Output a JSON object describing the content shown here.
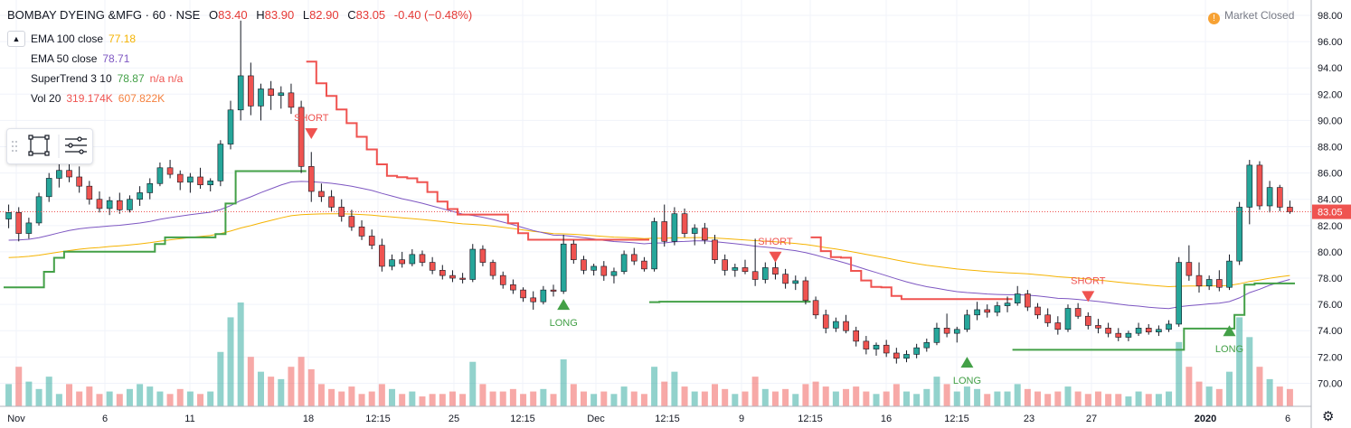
{
  "header": {
    "symbol": "BOMBAY DYEING &MFG · 60 · NSE",
    "open_label": "O",
    "open": "83.40",
    "high_label": "H",
    "high": "83.90",
    "low_label": "L",
    "low": "82.90",
    "close_label": "C",
    "close": "83.05",
    "change": "-0.40 (−0.48%)"
  },
  "market_status": "Market Closed",
  "market_icon": "!",
  "legend": [
    {
      "name": "EMA 100 close",
      "value": "77.18",
      "color": "#f5b301"
    },
    {
      "name": "EMA 50 close",
      "value": "78.71",
      "color": "#7e57c2"
    },
    {
      "name": "SuperTrend 3 10",
      "value": "78.87",
      "extra": "n/a n/a",
      "color": "#43a047",
      "extra_color": "#ef5350"
    },
    {
      "name": "Vol 20",
      "value": "319.174K",
      "value2": "607.822K",
      "color": "#ef5350",
      "color2": "#f5813f"
    }
  ],
  "colors": {
    "up": "#26a69a",
    "down": "#ef5350",
    "ema100": "#f5b301",
    "ema50": "#7e57c2",
    "st_up": "#43a047",
    "st_down": "#ef5350",
    "last_price_bg": "#ef5350",
    "grid": "#f0f3fa"
  },
  "chart_data": {
    "type": "candlestick",
    "title": "BOMBAY DYEING &MFG · 60 · NSE",
    "x_tick_labels": [
      "Nov",
      "6",
      "11",
      "18",
      "12:15",
      "25",
      "12:15",
      "Dec",
      "12:15",
      "9",
      "12:15",
      "16",
      "12:15",
      "23",
      "27",
      "2020",
      "6"
    ],
    "y_ticks": [
      "70.00",
      "72.00",
      "74.00",
      "76.00",
      "78.00",
      "80.00",
      "82.00",
      "84.00",
      "86.00",
      "88.00",
      "90.00",
      "92.00",
      "94.00",
      "96.00",
      "98.00"
    ],
    "ylim": [
      69,
      98.5
    ],
    "last_price": "83.05",
    "ohlc": [
      [
        82.5,
        83.6,
        81.8,
        83.0
      ],
      [
        83.0,
        83.4,
        80.8,
        81.4
      ],
      [
        81.4,
        82.6,
        81.0,
        82.2
      ],
      [
        82.2,
        84.5,
        82.0,
        84.2
      ],
      [
        84.2,
        86.0,
        83.8,
        85.6
      ],
      [
        85.6,
        86.8,
        84.9,
        86.2
      ],
      [
        86.2,
        86.9,
        85.3,
        85.7
      ],
      [
        85.7,
        86.5,
        84.5,
        85.0
      ],
      [
        85.0,
        85.4,
        83.6,
        84.0
      ],
      [
        84.0,
        84.6,
        83.0,
        83.3
      ],
      [
        83.3,
        84.2,
        82.8,
        83.9
      ],
      [
        83.9,
        84.5,
        82.9,
        83.2
      ],
      [
        83.2,
        84.3,
        83.0,
        84.0
      ],
      [
        84.0,
        85.0,
        83.5,
        84.5
      ],
      [
        84.5,
        85.6,
        84.0,
        85.2
      ],
      [
        85.2,
        86.8,
        85.0,
        86.4
      ],
      [
        86.4,
        87.0,
        85.6,
        85.9
      ],
      [
        85.9,
        86.2,
        84.7,
        85.3
      ],
      [
        85.3,
        86.0,
        84.5,
        85.7
      ],
      [
        85.7,
        86.4,
        84.8,
        85.1
      ],
      [
        85.1,
        85.6,
        84.6,
        85.4
      ],
      [
        85.4,
        88.5,
        85.0,
        88.2
      ],
      [
        88.2,
        91.5,
        87.8,
        90.8
      ],
      [
        90.8,
        97.6,
        90.0,
        93.4
      ],
      [
        93.4,
        94.4,
        90.4,
        91.1
      ],
      [
        91.1,
        92.8,
        90.0,
        92.4
      ],
      [
        92.4,
        93.0,
        90.8,
        91.9
      ],
      [
        91.9,
        92.6,
        90.9,
        92.1
      ],
      [
        92.1,
        92.8,
        90.5,
        91.0
      ],
      [
        91.0,
        91.5,
        86.0,
        86.5
      ],
      [
        86.5,
        87.6,
        83.8,
        84.6
      ],
      [
        84.6,
        85.2,
        83.8,
        84.2
      ],
      [
        84.2,
        84.7,
        83.1,
        83.4
      ],
      [
        83.4,
        84.0,
        82.3,
        82.7
      ],
      [
        82.7,
        83.2,
        81.6,
        81.9
      ],
      [
        81.9,
        82.4,
        80.9,
        81.2
      ],
      [
        81.2,
        81.7,
        80.2,
        80.5
      ],
      [
        80.5,
        81.0,
        78.5,
        78.9
      ],
      [
        78.9,
        79.8,
        78.6,
        79.4
      ],
      [
        79.4,
        80.0,
        78.8,
        79.1
      ],
      [
        79.1,
        80.2,
        78.9,
        79.8
      ],
      [
        79.8,
        80.1,
        78.9,
        79.2
      ],
      [
        79.2,
        79.6,
        78.3,
        78.6
      ],
      [
        78.6,
        79.0,
        77.9,
        78.2
      ],
      [
        78.2,
        78.6,
        77.7,
        78.0
      ],
      [
        78.0,
        78.4,
        77.6,
        77.9
      ],
      [
        77.9,
        80.6,
        77.7,
        80.2
      ],
      [
        80.2,
        80.5,
        78.9,
        79.2
      ],
      [
        79.2,
        79.4,
        77.9,
        78.2
      ],
      [
        78.2,
        78.5,
        77.2,
        77.5
      ],
      [
        77.5,
        77.9,
        76.8,
        77.1
      ],
      [
        77.1,
        77.3,
        76.2,
        76.5
      ],
      [
        76.5,
        77.0,
        75.6,
        76.2
      ],
      [
        76.2,
        77.4,
        76.0,
        77.1
      ],
      [
        77.1,
        77.5,
        76.6,
        77.0
      ],
      [
        77.0,
        81.3,
        76.8,
        80.6
      ],
      [
        80.6,
        80.9,
        79.1,
        79.4
      ],
      [
        79.4,
        79.7,
        78.3,
        78.6
      ],
      [
        78.6,
        79.1,
        78.2,
        78.9
      ],
      [
        78.9,
        79.3,
        77.8,
        78.2
      ],
      [
        78.2,
        78.8,
        77.6,
        78.5
      ],
      [
        78.5,
        80.1,
        78.3,
        79.8
      ],
      [
        79.8,
        80.3,
        79.0,
        79.3
      ],
      [
        79.3,
        79.6,
        78.5,
        78.7
      ],
      [
        78.7,
        82.6,
        78.5,
        82.3
      ],
      [
        82.3,
        83.6,
        80.4,
        80.8
      ],
      [
        80.8,
        83.4,
        80.5,
        82.9
      ],
      [
        82.9,
        83.3,
        81.1,
        81.4
      ],
      [
        81.4,
        82.1,
        80.5,
        81.8
      ],
      [
        81.8,
        82.2,
        80.6,
        80.9
      ],
      [
        80.9,
        81.3,
        79.1,
        79.4
      ],
      [
        79.4,
        79.8,
        78.2,
        78.6
      ],
      [
        78.6,
        79.1,
        78.1,
        78.8
      ],
      [
        78.8,
        79.4,
        78.3,
        78.5
      ],
      [
        78.5,
        81.0,
        77.4,
        77.9
      ],
      [
        77.9,
        79.2,
        77.6,
        78.8
      ],
      [
        78.8,
        79.3,
        77.9,
        78.3
      ],
      [
        78.3,
        78.7,
        77.2,
        77.6
      ],
      [
        77.6,
        78.2,
        77.1,
        77.8
      ],
      [
        77.8,
        78.1,
        76.0,
        76.3
      ],
      [
        76.3,
        76.6,
        74.9,
        75.2
      ],
      [
        75.2,
        75.6,
        73.8,
        74.2
      ],
      [
        74.2,
        75.0,
        73.9,
        74.7
      ],
      [
        74.7,
        75.2,
        73.8,
        74.0
      ],
      [
        74.0,
        74.3,
        72.8,
        73.2
      ],
      [
        73.2,
        73.6,
        72.2,
        72.6
      ],
      [
        72.6,
        73.1,
        72.1,
        72.9
      ],
      [
        72.9,
        73.3,
        72.0,
        72.3
      ],
      [
        72.3,
        72.7,
        71.5,
        71.9
      ],
      [
        71.9,
        72.5,
        71.6,
        72.2
      ],
      [
        72.2,
        73.0,
        71.9,
        72.7
      ],
      [
        72.7,
        73.4,
        72.4,
        73.1
      ],
      [
        73.1,
        74.6,
        72.9,
        74.2
      ],
      [
        74.2,
        75.3,
        73.5,
        73.8
      ],
      [
        73.8,
        74.3,
        73.1,
        74.1
      ],
      [
        74.1,
        75.6,
        73.9,
        75.2
      ],
      [
        75.2,
        76.2,
        74.8,
        75.6
      ],
      [
        75.6,
        76.0,
        75.0,
        75.4
      ],
      [
        75.4,
        76.2,
        75.1,
        75.9
      ],
      [
        75.9,
        76.6,
        75.4,
        76.1
      ],
      [
        76.1,
        77.4,
        75.9,
        76.8
      ],
      [
        76.8,
        77.1,
        75.5,
        75.8
      ],
      [
        75.8,
        76.1,
        74.9,
        75.2
      ],
      [
        75.2,
        75.7,
        74.3,
        74.6
      ],
      [
        74.6,
        75.1,
        73.7,
        74.1
      ],
      [
        74.1,
        76.0,
        73.9,
        75.7
      ],
      [
        75.7,
        76.1,
        74.9,
        75.1
      ],
      [
        75.1,
        75.4,
        74.1,
        74.4
      ],
      [
        74.4,
        74.9,
        73.8,
        74.2
      ],
      [
        74.2,
        74.6,
        73.5,
        73.8
      ],
      [
        73.8,
        74.2,
        73.2,
        73.5
      ],
      [
        73.5,
        74.0,
        73.2,
        73.8
      ],
      [
        73.8,
        74.6,
        73.6,
        74.2
      ],
      [
        74.2,
        74.5,
        73.7,
        73.9
      ],
      [
        73.9,
        74.4,
        73.6,
        74.1
      ],
      [
        74.1,
        74.8,
        73.9,
        74.5
      ],
      [
        74.5,
        79.6,
        74.3,
        79.2
      ],
      [
        79.2,
        80.5,
        77.8,
        78.2
      ],
      [
        78.2,
        79.2,
        76.9,
        77.4
      ],
      [
        77.4,
        78.2,
        77.1,
        77.9
      ],
      [
        77.9,
        78.6,
        77.0,
        77.3
      ],
      [
        77.3,
        79.8,
        77.1,
        79.3
      ],
      [
        79.3,
        83.8,
        79.0,
        83.4
      ],
      [
        83.4,
        87.0,
        82.1,
        86.6
      ],
      [
        86.6,
        86.9,
        83.2,
        83.5
      ],
      [
        83.5,
        85.4,
        83.0,
        84.9
      ],
      [
        84.9,
        85.1,
        83.1,
        83.4
      ],
      [
        83.4,
        83.9,
        82.9,
        83.05
      ]
    ],
    "volume": [
      0.9,
      1.6,
      1.0,
      0.7,
      1.2,
      0.5,
      0.9,
      0.6,
      0.8,
      0.5,
      0.6,
      0.5,
      0.7,
      0.9,
      0.8,
      0.6,
      0.5,
      0.7,
      0.6,
      0.5,
      0.6,
      2.2,
      3.6,
      4.2,
      2.0,
      1.4,
      1.2,
      1.1,
      1.6,
      2.0,
      1.5,
      0.9,
      0.7,
      0.6,
      0.8,
      0.5,
      0.6,
      0.9,
      0.7,
      0.5,
      0.6,
      0.4,
      0.5,
      0.5,
      0.6,
      0.5,
      1.8,
      0.9,
      0.6,
      0.6,
      0.7,
      0.5,
      0.6,
      0.7,
      0.5,
      1.9,
      0.9,
      0.6,
      0.5,
      0.6,
      0.5,
      0.8,
      0.6,
      0.5,
      1.6,
      1.0,
      1.4,
      0.8,
      0.6,
      0.6,
      0.9,
      0.7,
      0.5,
      0.6,
      1.2,
      0.7,
      0.6,
      0.7,
      0.5,
      0.9,
      1.0,
      0.8,
      0.6,
      0.7,
      0.8,
      0.6,
      0.5,
      0.6,
      0.9,
      0.6,
      0.5,
      0.7,
      1.2,
      0.9,
      0.6,
      0.8,
      0.7,
      0.5,
      0.6,
      0.6,
      0.9,
      0.7,
      0.6,
      0.5,
      0.6,
      0.8,
      0.6,
      0.5,
      0.6,
      0.5,
      0.5,
      0.4,
      0.6,
      0.5,
      0.5,
      0.6,
      2.6,
      1.6,
      1.0,
      0.8,
      0.7,
      1.4,
      3.6,
      2.8,
      1.6,
      1.1,
      0.8,
      0.7
    ],
    "signals": [
      {
        "label": "SHORT",
        "type": "short",
        "bar": 30,
        "price": 89.0
      },
      {
        "label": "LONG",
        "type": "long",
        "bar": 55,
        "price": 76.0
      },
      {
        "label": "SHORT",
        "type": "short",
        "bar": 76,
        "price": 79.6
      },
      {
        "label": "LONG",
        "type": "long",
        "bar": 95,
        "price": 71.6
      },
      {
        "label": "SHORT",
        "type": "short",
        "bar": 107,
        "price": 76.6
      },
      {
        "label": "LONG",
        "type": "long",
        "bar": 121,
        "price": 74.0
      }
    ]
  }
}
